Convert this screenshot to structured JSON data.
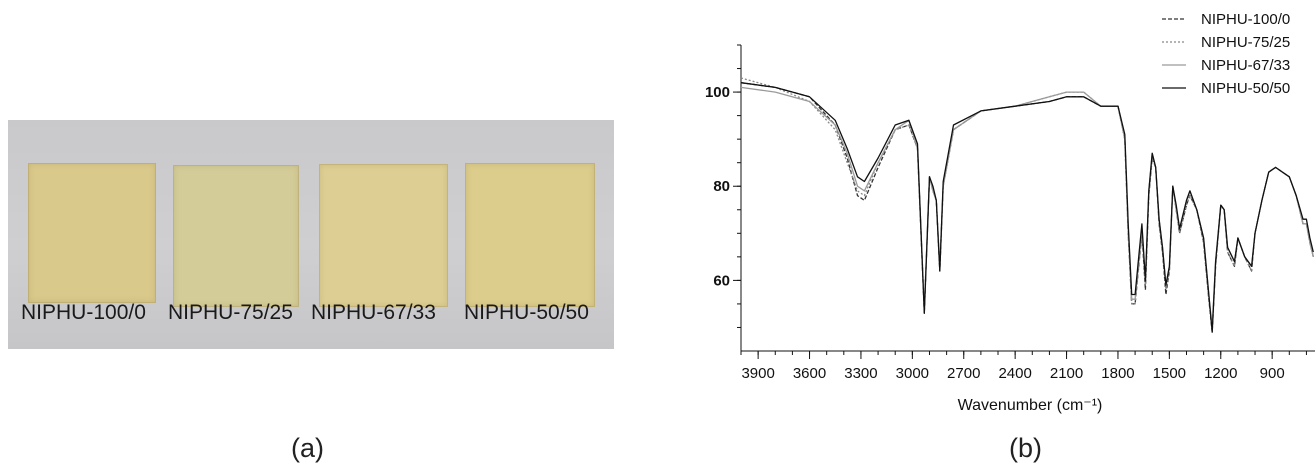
{
  "panel_a": {
    "caption": "(a)",
    "samples": [
      "NIPHU-100/0",
      "NIPHU-75/25",
      "NIPHU-67/33",
      "NIPHU-50/50"
    ]
  },
  "panel_b": {
    "caption": "(b)"
  },
  "chart_data": {
    "type": "line",
    "title": "",
    "xlabel": "Wavenumber (cm⁻¹)",
    "ylabel": "",
    "xlim": [
      4000,
      650
    ],
    "ylim": [
      45,
      110
    ],
    "x_reversed": true,
    "x_ticks": [
      3900,
      3600,
      3300,
      3000,
      2700,
      2400,
      2100,
      1800,
      1500,
      1200,
      900
    ],
    "y_ticks": [
      60,
      80,
      100
    ],
    "legend_position": "top-right",
    "series": [
      {
        "name": "NIPHU-100/0",
        "style": "dashed",
        "color": "#333333",
        "x": [
          4000,
          3800,
          3600,
          3450,
          3380,
          3320,
          3280,
          3200,
          3100,
          3020,
          2970,
          2930,
          2900,
          2880,
          2860,
          2840,
          2820,
          2760,
          2600,
          2400,
          2200,
          2100,
          2000,
          1900,
          1800,
          1760,
          1740,
          1720,
          1700,
          1660,
          1640,
          1620,
          1600,
          1580,
          1560,
          1540,
          1520,
          1500,
          1480,
          1460,
          1440,
          1400,
          1380,
          1340,
          1300,
          1270,
          1250,
          1230,
          1200,
          1180,
          1160,
          1120,
          1100,
          1060,
          1020,
          1000,
          960,
          920,
          880,
          840,
          800,
          760,
          720,
          700,
          680,
          660
        ],
        "y": [
          102,
          101,
          99,
          93,
          86,
          78,
          77,
          84,
          92,
          93,
          88,
          53,
          82,
          79,
          77,
          62,
          80,
          92,
          96,
          97,
          98,
          99,
          99,
          97,
          97,
          90,
          70,
          55,
          55,
          70,
          58,
          78,
          86,
          84,
          72,
          66,
          57,
          62,
          80,
          75,
          70,
          76,
          78,
          75,
          68,
          56,
          49,
          63,
          76,
          75,
          66,
          63,
          69,
          65,
          62,
          70,
          77,
          83,
          84,
          83,
          82,
          78,
          72,
          72,
          68,
          65
        ]
      },
      {
        "name": "NIPHU-75/25",
        "style": "dotted",
        "color": "#888888",
        "x": [
          4000,
          3800,
          3600,
          3450,
          3380,
          3320,
          3280,
          3200,
          3100,
          3020,
          2970,
          2930,
          2900,
          2880,
          2860,
          2840,
          2820,
          2760,
          2600,
          2400,
          2200,
          2100,
          2000,
          1900,
          1800,
          1760,
          1740,
          1720,
          1700,
          1660,
          1640,
          1620,
          1600,
          1580,
          1560,
          1540,
          1520,
          1500,
          1480,
          1460,
          1440,
          1400,
          1380,
          1340,
          1300,
          1270,
          1250,
          1230,
          1200,
          1180,
          1160,
          1120,
          1100,
          1060,
          1020,
          1000,
          960,
          920,
          880,
          840,
          800,
          760,
          720,
          700,
          680,
          660
        ],
        "y": [
          103,
          101,
          98,
          92,
          85,
          79,
          78,
          85,
          92,
          93,
          88,
          54,
          82,
          79,
          77,
          63,
          80,
          92,
          96,
          97,
          99,
          100,
          100,
          97,
          97,
          90,
          70,
          55,
          55,
          70,
          59,
          78,
          86,
          84,
          72,
          66,
          58,
          62,
          80,
          75,
          70,
          76,
          78,
          75,
          68,
          56,
          50,
          63,
          76,
          75,
          66,
          63,
          69,
          65,
          62,
          70,
          77,
          83,
          84,
          83,
          82,
          78,
          72,
          72,
          68,
          65
        ]
      },
      {
        "name": "NIPHU-67/33",
        "style": "solid",
        "color": "#9a9a9a",
        "x": [
          4000,
          3800,
          3600,
          3450,
          3380,
          3320,
          3280,
          3200,
          3100,
          3020,
          2970,
          2930,
          2900,
          2880,
          2860,
          2840,
          2820,
          2760,
          2600,
          2400,
          2200,
          2100,
          2000,
          1900,
          1800,
          1760,
          1740,
          1720,
          1700,
          1660,
          1640,
          1620,
          1600,
          1580,
          1560,
          1540,
          1520,
          1500,
          1480,
          1460,
          1440,
          1400,
          1380,
          1340,
          1300,
          1270,
          1250,
          1230,
          1200,
          1180,
          1160,
          1120,
          1100,
          1060,
          1020,
          1000,
          960,
          920,
          880,
          840,
          800,
          760,
          720,
          700,
          680,
          660
        ],
        "y": [
          101,
          100,
          98,
          93,
          87,
          80,
          79,
          85,
          92,
          94,
          88,
          54,
          82,
          79,
          77,
          63,
          80,
          92,
          96,
          97,
          99,
          100,
          100,
          97,
          97,
          90,
          71,
          56,
          56,
          71,
          60,
          79,
          87,
          84,
          73,
          67,
          59,
          63,
          80,
          75,
          71,
          77,
          79,
          75,
          69,
          57,
          50,
          64,
          76,
          75,
          67,
          64,
          69,
          65,
          63,
          70,
          77,
          83,
          84,
          83,
          82,
          78,
          72,
          72,
          68,
          65
        ]
      },
      {
        "name": "NIPHU-50/50",
        "style": "solid",
        "color": "#111111",
        "x": [
          4000,
          3800,
          3600,
          3450,
          3380,
          3320,
          3280,
          3200,
          3100,
          3020,
          2970,
          2930,
          2900,
          2880,
          2860,
          2840,
          2820,
          2760,
          2600,
          2400,
          2200,
          2100,
          2000,
          1900,
          1800,
          1760,
          1740,
          1720,
          1700,
          1660,
          1640,
          1620,
          1600,
          1580,
          1560,
          1540,
          1520,
          1500,
          1480,
          1460,
          1440,
          1400,
          1380,
          1340,
          1300,
          1270,
          1250,
          1230,
          1200,
          1180,
          1160,
          1120,
          1100,
          1060,
          1020,
          1000,
          960,
          920,
          880,
          840,
          800,
          760,
          720,
          700,
          680,
          660
        ],
        "y": [
          102,
          101,
          99,
          94,
          88,
          82,
          81,
          86,
          93,
          94,
          89,
          53,
          82,
          80,
          77,
          62,
          81,
          93,
          96,
          97,
          98,
          99,
          99,
          97,
          97,
          91,
          72,
          57,
          57,
          72,
          60,
          79,
          87,
          84,
          73,
          67,
          59,
          63,
          80,
          76,
          71,
          77,
          79,
          75,
          69,
          57,
          49,
          64,
          76,
          75,
          67,
          64,
          69,
          65,
          63,
          70,
          77,
          83,
          84,
          83,
          82,
          78,
          73,
          73,
          69,
          66
        ]
      }
    ]
  }
}
